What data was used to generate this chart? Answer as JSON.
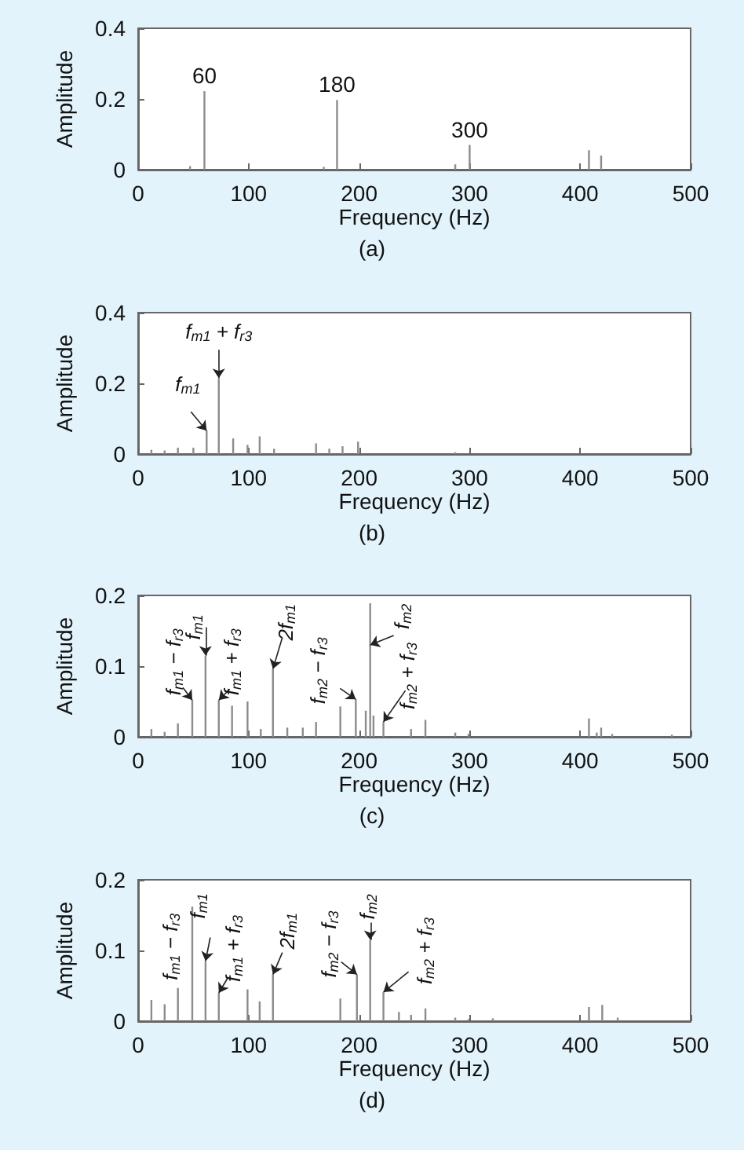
{
  "chart_data": [
    {
      "type": "bar",
      "title": "(a)",
      "xlabel": "Frequency (Hz)",
      "ylabel": "Amplitude",
      "xlim": [
        0,
        500
      ],
      "xticks": [
        0,
        100,
        200,
        300,
        400,
        500
      ],
      "ylim": [
        0,
        0.4
      ],
      "yticks": [
        0,
        0.2,
        0.4
      ],
      "grid": false,
      "color": "#8c8c8c",
      "x": [
        47,
        60,
        168,
        180,
        287,
        300,
        408,
        419
      ],
      "values": [
        0.01,
        0.222,
        0.008,
        0.197,
        0.015,
        0.07,
        0.055,
        0.04
      ],
      "annotations": [
        {
          "text": "60",
          "x": 60,
          "y": 0.222
        },
        {
          "text": "180",
          "x": 180,
          "y": 0.197
        },
        {
          "text": "300",
          "x": 300,
          "y": 0.07
        }
      ]
    },
    {
      "type": "bar",
      "title": "(b)",
      "xlabel": "Frequency (Hz)",
      "ylabel": "Amplitude",
      "xlim": [
        0,
        500
      ],
      "xticks": [
        0,
        100,
        200,
        300,
        400,
        500
      ],
      "ylim": [
        0,
        0.4
      ],
      "yticks": [
        0,
        0.2,
        0.4
      ],
      "grid": false,
      "color": "#8c8c8c",
      "x": [
        12,
        24,
        36,
        50,
        62,
        73,
        86,
        99,
        110,
        123,
        161,
        173,
        185,
        199,
        287
      ],
      "values": [
        0.012,
        0.01,
        0.018,
        0.018,
        0.066,
        0.215,
        0.044,
        0.026,
        0.05,
        0.015,
        0.03,
        0.015,
        0.022,
        0.035,
        0.005
      ],
      "annotations": [
        {
          "text": "f$_{m1}$",
          "x": 62,
          "y": 0.066
        },
        {
          "text": "f$_{m1}$ + f$_{r3}$",
          "x": 73,
          "y": 0.215
        }
      ]
    },
    {
      "type": "bar",
      "title": "(c)",
      "xlabel": "Frequency (Hz)",
      "ylabel": "Amplitude",
      "xlim": [
        0,
        500
      ],
      "xticks": [
        0,
        100,
        200,
        300,
        400,
        500
      ],
      "ylim": [
        0,
        0.2
      ],
      "yticks": [
        0,
        0.1,
        0.2
      ],
      "grid": false,
      "color": "#8c8c8c",
      "x": [
        12,
        24,
        36,
        49,
        61,
        73,
        85,
        99,
        111,
        122,
        135,
        149,
        161,
        183,
        197,
        206,
        210,
        213,
        222,
        247,
        260,
        287,
        299,
        408,
        415,
        419,
        429,
        483
      ],
      "values": [
        0.011,
        0.007,
        0.019,
        0.052,
        0.115,
        0.052,
        0.044,
        0.05,
        0.011,
        0.096,
        0.013,
        0.013,
        0.021,
        0.043,
        0.053,
        0.037,
        0.189,
        0.03,
        0.021,
        0.011,
        0.024,
        0.006,
        0.004,
        0.026,
        0.006,
        0.013,
        0.004,
        0.003
      ],
      "annotations": [
        {
          "text": "f$_{m1}$ − f$_{r3}$",
          "x": 49,
          "y": 0.052
        },
        {
          "text": "f$_{m1}$",
          "x": 61,
          "y": 0.115
        },
        {
          "text": "f$_{m1}$ + f$_{r3}$",
          "x": 73,
          "y": 0.052
        },
        {
          "text": "2f$_{m1}$",
          "x": 122,
          "y": 0.096
        },
        {
          "text": "f$_{m2}$ − f$_{r3}$",
          "x": 197,
          "y": 0.053
        },
        {
          "text": "f$_{m2}$",
          "x": 210,
          "y": 0.13
        },
        {
          "text": "f$_{m2}$ + f$_{r3}$",
          "x": 222,
          "y": 0.021
        }
      ]
    },
    {
      "type": "bar",
      "title": "(d)",
      "xlabel": "Frequency (Hz)",
      "ylabel": "Amplitude",
      "xlim": [
        0,
        500
      ],
      "xticks": [
        0,
        100,
        200,
        300,
        400,
        500
      ],
      "ylim": [
        0,
        0.2
      ],
      "yticks": [
        0,
        0.1,
        0.2
      ],
      "grid": false,
      "color": "#8c8c8c",
      "x": [
        12,
        24,
        36,
        49,
        61,
        73,
        99,
        110,
        122,
        183,
        198,
        210,
        222,
        236,
        247,
        260,
        287,
        299,
        321,
        408,
        420,
        434
      ],
      "values": [
        0.03,
        0.024,
        0.047,
        0.162,
        0.085,
        0.04,
        0.045,
        0.028,
        0.066,
        0.032,
        0.066,
        0.115,
        0.041,
        0.013,
        0.009,
        0.018,
        0.005,
        0.003,
        0.004,
        0.02,
        0.023,
        0.005
      ],
      "annotations": [
        {
          "text": "f$_{m1}$ − f$_{r3}$",
          "x": 36,
          "y": 0.047
        },
        {
          "text": "f$_{m1}$",
          "x": 61,
          "y": 0.085
        },
        {
          "text": "f$_{m1}$ + f$_{r3}$",
          "x": 73,
          "y": 0.04
        },
        {
          "text": "2f$_{m1}$",
          "x": 122,
          "y": 0.066
        },
        {
          "text": "f$_{m2}$ − f$_{r3}$",
          "x": 198,
          "y": 0.066
        },
        {
          "text": "f$_{m2}$",
          "x": 210,
          "y": 0.115
        },
        {
          "text": "f$_{m2}$ + f$_{r3}$",
          "x": 222,
          "y": 0.041
        }
      ]
    }
  ]
}
